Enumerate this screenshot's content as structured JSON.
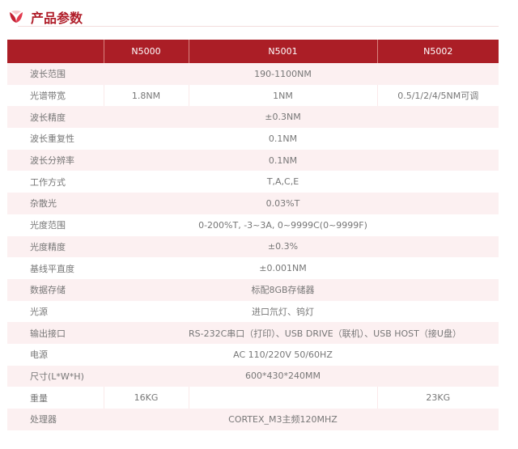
{
  "title": "产品参数",
  "brand_color": "#ab1e26",
  "columns": [
    "",
    "N5000",
    "N5001",
    "N5002"
  ],
  "rows": [
    {
      "label": "波长范围",
      "merged": "190-1100NM"
    },
    {
      "label": "光谱带宽",
      "values": [
        "1.8NM",
        "1NM",
        "0.5/1/2/4/5NM可调"
      ]
    },
    {
      "label": "波长精度",
      "merged": "±0.3NM"
    },
    {
      "label": "波长重复性",
      "merged": "0.1NM"
    },
    {
      "label": "波长分辨率",
      "merged": "0.1NM"
    },
    {
      "label": "工作方式",
      "merged": "T,A,C,E"
    },
    {
      "label": "杂散光",
      "merged": "0.03%T"
    },
    {
      "label": "光度范围",
      "merged": "0-200%T, -3~3A, 0~9999C(0~9999F)"
    },
    {
      "label": "光度精度",
      "merged": "±0.3%"
    },
    {
      "label": "基线平直度",
      "merged": "±0.001NM"
    },
    {
      "label": "数据存储",
      "merged": "标配8GB存储器"
    },
    {
      "label": "光源",
      "merged": "进口氘灯、钨灯"
    },
    {
      "label": "输出接口",
      "merged": "RS-232C串口（打印）、USB DRIVE（联机）、USB HOST（接U盘）"
    },
    {
      "label": "电源",
      "merged": "AC 110/220V 50/60HZ"
    },
    {
      "label": "尺寸(L*W*H)",
      "merged": "600*430*240MM"
    },
    {
      "label": "重量",
      "values": [
        "16KG",
        "",
        "23KG"
      ]
    },
    {
      "label": "处理器",
      "merged": "CORTEX_M3主频120MHZ"
    }
  ]
}
